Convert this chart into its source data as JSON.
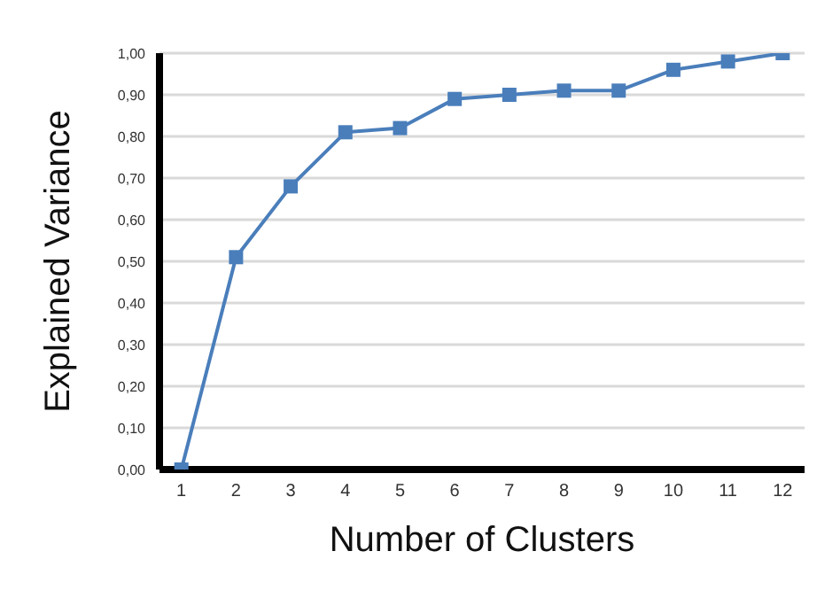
{
  "chart_data": {
    "type": "line",
    "xlabel": "Number of Clusters",
    "ylabel": "Explained Variance",
    "x": [
      1,
      2,
      3,
      4,
      5,
      6,
      7,
      8,
      9,
      10,
      11,
      12
    ],
    "series": [
      {
        "color": "#4a7ebb",
        "values": [
          0,
          0.51,
          0.68,
          0.81,
          0.82,
          0.89,
          0.9,
          0.91,
          0.91,
          0.96,
          0.98,
          1.0
        ]
      }
    ],
    "xlim": [
      0.6,
      12.4
    ],
    "xticks": [
      1,
      2,
      3,
      4,
      5,
      6,
      7,
      8,
      9,
      10,
      11,
      12
    ],
    "ylim": [
      0,
      1
    ],
    "yticks": [
      {
        "value": 0,
        "label": "0,00"
      },
      {
        "value": 0.1,
        "label": "0,10"
      },
      {
        "value": 0.2,
        "label": "0,20"
      },
      {
        "value": 0.3,
        "label": "0,30"
      },
      {
        "value": 0.4,
        "label": "0,40"
      },
      {
        "value": 0.5,
        "label": "0,50"
      },
      {
        "value": 0.6,
        "label": "0,60"
      },
      {
        "value": 0.7,
        "label": "0,70"
      },
      {
        "value": 0.8,
        "label": "0,80"
      },
      {
        "value": 0.9,
        "label": "0,90"
      },
      {
        "value": 1,
        "label": "1,00"
      }
    ],
    "grid": "y",
    "marker": "square",
    "line_style": "solid"
  }
}
